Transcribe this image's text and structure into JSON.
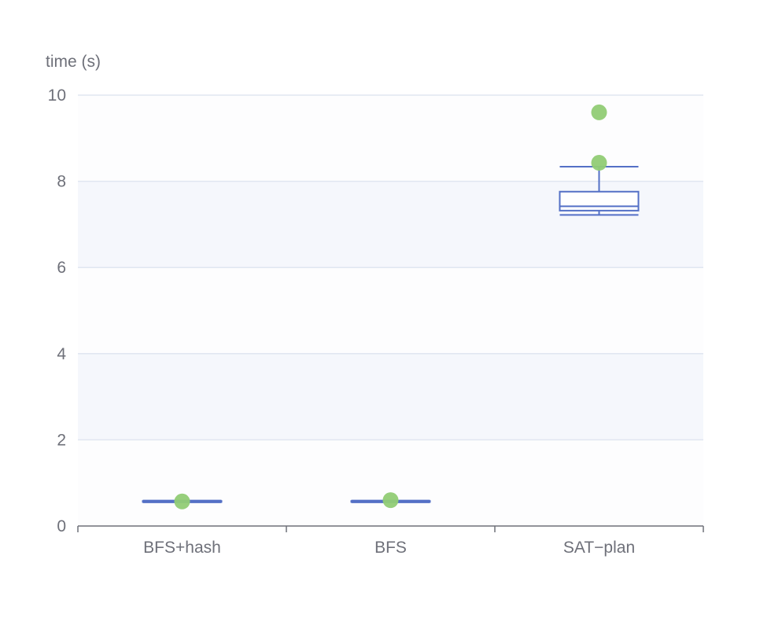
{
  "chart_data": {
    "type": "boxplot",
    "ylabel": "time (s)",
    "ylim": [
      0,
      10
    ],
    "yticks": [
      "0",
      "2",
      "4",
      "6",
      "8",
      "10"
    ],
    "grid": true,
    "categories": [
      "BFS+hash",
      "BFS",
      "SAT−plan"
    ],
    "boxes": [
      {
        "category": "BFS+hash",
        "min": 0.55,
        "q1": 0.56,
        "median": 0.57,
        "q3": 0.58,
        "max": 0.59
      },
      {
        "category": "BFS",
        "min": 0.55,
        "q1": 0.56,
        "median": 0.57,
        "q3": 0.58,
        "max": 0.59
      },
      {
        "category": "SAT−plan",
        "min": 7.22,
        "q1": 7.32,
        "median": 7.42,
        "q3": 7.76,
        "max": 8.34
      }
    ],
    "outliers": [
      {
        "category": "BFS+hash",
        "value": 0.57
      },
      {
        "category": "BFS",
        "value": 0.6
      },
      {
        "category": "SAT−plan",
        "value": 8.43
      },
      {
        "category": "SAT−plan",
        "value": 9.6
      }
    ],
    "colors": {
      "box": "#5470c6",
      "outlier": "#91cc75",
      "grid": "#e0e6f1",
      "band": "#f5f7fc",
      "axis": "#6e7079"
    }
  }
}
